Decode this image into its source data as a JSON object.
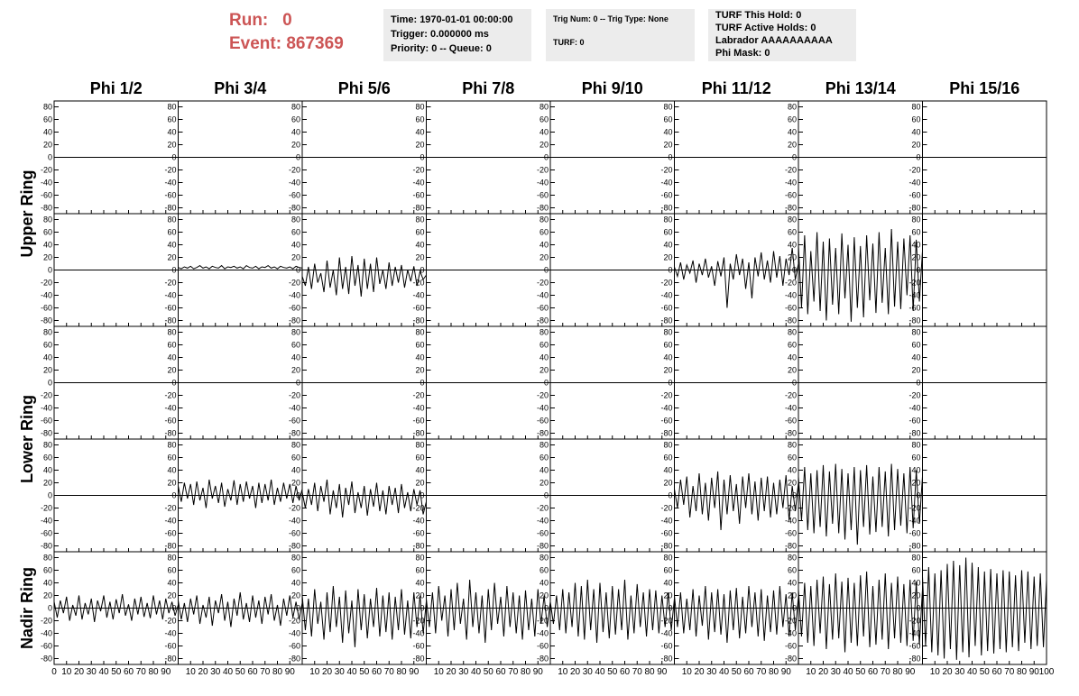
{
  "header": {
    "run_label": "Run:",
    "run": 0,
    "event_label": "Event:",
    "event": 867369,
    "info_1": [
      "Time: 1970-01-01 00:00:00",
      "Trigger: 0.000000 ms",
      "Priority: 0 -- Queue: 0"
    ],
    "info_2": [
      "Trig Num: 0 -- Trig Type: None",
      "TURF: 0"
    ],
    "info_3": [
      "TURF This Hold: 0",
      "TURF Active Holds: 0",
      "Labrador AAAAAAAAAA",
      "Phi Mask: 0"
    ]
  },
  "chart_data": {
    "type": "line",
    "color": "#000000",
    "columns": [
      "Phi 1/2",
      "Phi 3/4",
      "Phi 5/6",
      "Phi 7/8",
      "Phi 9/10",
      "Phi 11/12",
      "Phi 13/14",
      "Phi 15/16"
    ],
    "rows": [
      "Upper Ring",
      "Lower Ring",
      "Nadir Ring"
    ],
    "xlim": [
      0,
      100
    ],
    "xticks": [
      0,
      10,
      20,
      30,
      40,
      50,
      60,
      70,
      80,
      90,
      100
    ],
    "ylim": [
      -85,
      85
    ],
    "yticks": [
      80,
      60,
      40,
      20,
      0,
      -20,
      -40,
      -60,
      -80
    ],
    "x": [
      0,
      2.5,
      5,
      7.5,
      10,
      12.5,
      15,
      17.5,
      20,
      22.5,
      25,
      27.5,
      30,
      32.5,
      35,
      37.5,
      40,
      42.5,
      45,
      47.5,
      50,
      52.5,
      55,
      57.5,
      60,
      62.5,
      65,
      67.5,
      70,
      72.5,
      75,
      77.5,
      80,
      82.5,
      85,
      87.5,
      90,
      92.5,
      95,
      97.5,
      100
    ],
    "panels": [
      [
        null,
        null,
        null,
        null,
        null,
        null,
        null,
        null
      ],
      [
        null,
        [
          4,
          2,
          5,
          3,
          6,
          2,
          4,
          7,
          3,
          5,
          2,
          6,
          4,
          3,
          7,
          2,
          5,
          4,
          6,
          3,
          5,
          2,
          7,
          4,
          3,
          6,
          2,
          5,
          4,
          7,
          3,
          5,
          2,
          6,
          4,
          3,
          5,
          2,
          6,
          4,
          3
        ],
        [
          -10,
          -25,
          5,
          -30,
          10,
          -20,
          -5,
          -35,
          15,
          -28,
          0,
          -40,
          20,
          -30,
          5,
          -38,
          22,
          -25,
          8,
          -42,
          18,
          -30,
          10,
          -35,
          20,
          -22,
          0,
          -30,
          12,
          -25,
          5,
          -20,
          8,
          -28,
          0,
          -18,
          6,
          -25,
          -2,
          -15,
          -8
        ],
        null,
        null,
        [
          5,
          -10,
          12,
          -15,
          8,
          -5,
          15,
          -20,
          10,
          -8,
          18,
          -12,
          6,
          -25,
          14,
          -10,
          20,
          -60,
          10,
          -15,
          25,
          -8,
          18,
          -30,
          12,
          -45,
          20,
          -10,
          28,
          -15,
          15,
          -20,
          30,
          -12,
          22,
          -25,
          18,
          -8,
          35,
          -15,
          10
        ],
        [
          40,
          -60,
          55,
          -70,
          30,
          -50,
          60,
          -65,
          45,
          -80,
          50,
          -55,
          35,
          -70,
          58,
          -45,
          40,
          -82,
          52,
          -60,
          38,
          -75,
          55,
          -48,
          42,
          -68,
          60,
          -52,
          35,
          -70,
          65,
          -58,
          45,
          -62,
          50,
          -40,
          55,
          -65,
          48,
          -50,
          30
        ],
        null
      ],
      [
        null,
        null,
        null,
        null,
        null,
        null,
        null,
        null
      ],
      [
        null,
        [
          15,
          -10,
          20,
          -5,
          18,
          -15,
          22,
          -8,
          12,
          -20,
          25,
          -5,
          15,
          -12,
          20,
          -18,
          10,
          -8,
          24,
          -15,
          18,
          -10,
          22,
          -5,
          15,
          -20,
          20,
          -12,
          18,
          -8,
          25,
          -15,
          12,
          -10,
          20,
          -5,
          18,
          -12,
          15,
          -8,
          10
        ],
        [
          5,
          -20,
          10,
          -15,
          20,
          -25,
          15,
          -10,
          25,
          -30,
          8,
          -20,
          18,
          -35,
          12,
          -15,
          22,
          -28,
          5,
          -20,
          15,
          -32,
          10,
          -18,
          20,
          -25,
          8,
          -30,
          15,
          -15,
          12,
          -28,
          18,
          -20,
          5,
          -25,
          10,
          -15,
          8,
          -30,
          -10
        ],
        null,
        null,
        [
          10,
          -20,
          25,
          -15,
          30,
          -35,
          15,
          -25,
          35,
          -30,
          20,
          -40,
          28,
          -20,
          38,
          -55,
          25,
          -30,
          32,
          -25,
          18,
          -45,
          30,
          -20,
          35,
          -30,
          22,
          -40,
          28,
          -25,
          30,
          -35,
          20,
          -30,
          25,
          -20,
          32,
          -40,
          15,
          -25,
          20
        ],
        [
          30,
          -40,
          45,
          -55,
          35,
          -60,
          40,
          -50,
          48,
          -65,
          38,
          -45,
          50,
          -60,
          42,
          -70,
          35,
          -55,
          45,
          -78,
          40,
          -50,
          48,
          -62,
          30,
          -58,
          45,
          -50,
          38,
          -65,
          50,
          -55,
          42,
          -48,
          35,
          -60,
          45,
          -52,
          40,
          -45,
          30
        ],
        null
      ],
      [
        [
          10,
          -15,
          12,
          -8,
          18,
          -20,
          5,
          -12,
          20,
          -18,
          8,
          -10,
          15,
          -22,
          12,
          -5,
          20,
          -15,
          10,
          -18,
          14,
          -8,
          22,
          -12,
          6,
          -20,
          15,
          -10,
          18,
          -14,
          8,
          -16,
          20,
          -10,
          12,
          -18,
          15,
          -8,
          10,
          -12,
          5
        ],
        [
          12,
          -18,
          8,
          -22,
          15,
          -10,
          20,
          -25,
          5,
          -15,
          18,
          -28,
          12,
          -8,
          22,
          -20,
          10,
          -30,
          15,
          -12,
          25,
          -18,
          8,
          -22,
          20,
          -15,
          12,
          -25,
          18,
          -10,
          22,
          -20,
          5,
          -28,
          15,
          -12,
          20,
          -15,
          10,
          -18,
          8
        ],
        [
          20,
          -35,
          15,
          -45,
          30,
          -25,
          10,
          -50,
          25,
          -38,
          35,
          -30,
          18,
          -55,
          28,
          -40,
          12,
          -62,
          30,
          -35,
          22,
          -48,
          15,
          -30,
          32,
          -45,
          20,
          -38,
          25,
          -50,
          18,
          -35,
          30,
          -42,
          12,
          -48,
          25,
          -30,
          20,
          -40,
          10
        ],
        [
          15,
          -30,
          25,
          -40,
          35,
          -20,
          20,
          -45,
          30,
          -35,
          40,
          -25,
          15,
          -50,
          45,
          -30,
          25,
          -40,
          20,
          -55,
          30,
          -35,
          40,
          -25,
          18,
          -45,
          35,
          -30,
          25,
          -40,
          20,
          -50,
          28,
          -35,
          15,
          -45,
          30,
          -25,
          20,
          -30,
          10
        ],
        [
          10,
          -25,
          20,
          -35,
          30,
          -40,
          25,
          -30,
          40,
          -45,
          35,
          -50,
          45,
          -35,
          30,
          -55,
          40,
          -38,
          25,
          -48,
          35,
          -42,
          30,
          -35,
          45,
          -50,
          20,
          -40,
          38,
          -30,
          25,
          -45,
          30,
          -35,
          28,
          -40,
          20,
          -30,
          25,
          -35,
          15
        ],
        [
          20,
          -30,
          25,
          -40,
          15,
          -35,
          30,
          -45,
          20,
          -28,
          35,
          -50,
          25,
          -38,
          30,
          -42,
          22,
          -55,
          28,
          -35,
          32,
          -48,
          18,
          -40,
          35,
          -30,
          25,
          -45,
          30,
          -52,
          20,
          -38,
          28,
          -42,
          35,
          -30,
          22,
          -45,
          25,
          -35,
          18
        ],
        [
          30,
          -45,
          40,
          -55,
          35,
          -60,
          45,
          -40,
          50,
          -65,
          38,
          -50,
          55,
          -48,
          42,
          -70,
          48,
          -55,
          40,
          -60,
          52,
          -45,
          58,
          -62,
          35,
          -58,
          45,
          -50,
          55,
          -65,
          40,
          -48,
          50,
          -55,
          38,
          -60,
          45,
          -52,
          42,
          -58,
          30
        ],
        [
          50,
          -60,
          65,
          -70,
          55,
          -75,
          60,
          -80,
          70,
          -65,
          75,
          -82,
          68,
          -70,
          80,
          -78,
          72,
          -60,
          65,
          -75,
          58,
          -68,
          62,
          -72,
          55,
          -65,
          60,
          -70,
          58,
          -62,
          52,
          -68,
          60,
          -55,
          58,
          -65,
          50,
          -60,
          55,
          -62,
          45
        ]
      ]
    ]
  }
}
